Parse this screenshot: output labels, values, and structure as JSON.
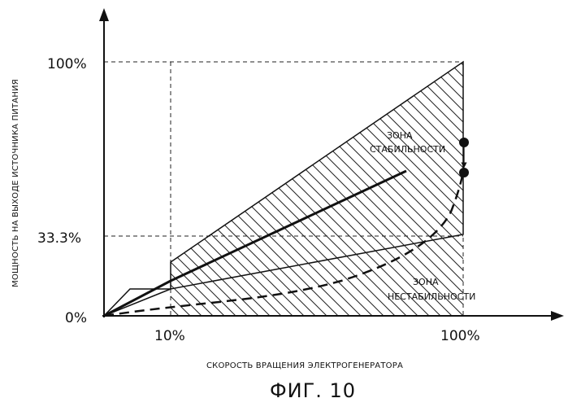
{
  "figure": {
    "caption": "ФИГ. 10",
    "x_axis_label": "СКОРОСТЬ ВРАЩЕНИЯ ЭЛЕКТРОГЕНЕРАТОРА",
    "y_axis_label": "МОЩНОСТЬ НА ВЫХОДЕ ИСТОЧНИКА ПИТАНИЯ",
    "x_ticks": [
      "10%",
      "100%"
    ],
    "y_ticks": [
      "100%",
      "33.3%",
      "0%"
    ],
    "stability_zone": [
      "ЗОНА",
      "СТАБИЛЬНОСТИ"
    ],
    "instability_zone": [
      "ЗОНА",
      "НЕСТАБИЛЬНОСТИ"
    ]
  }
}
